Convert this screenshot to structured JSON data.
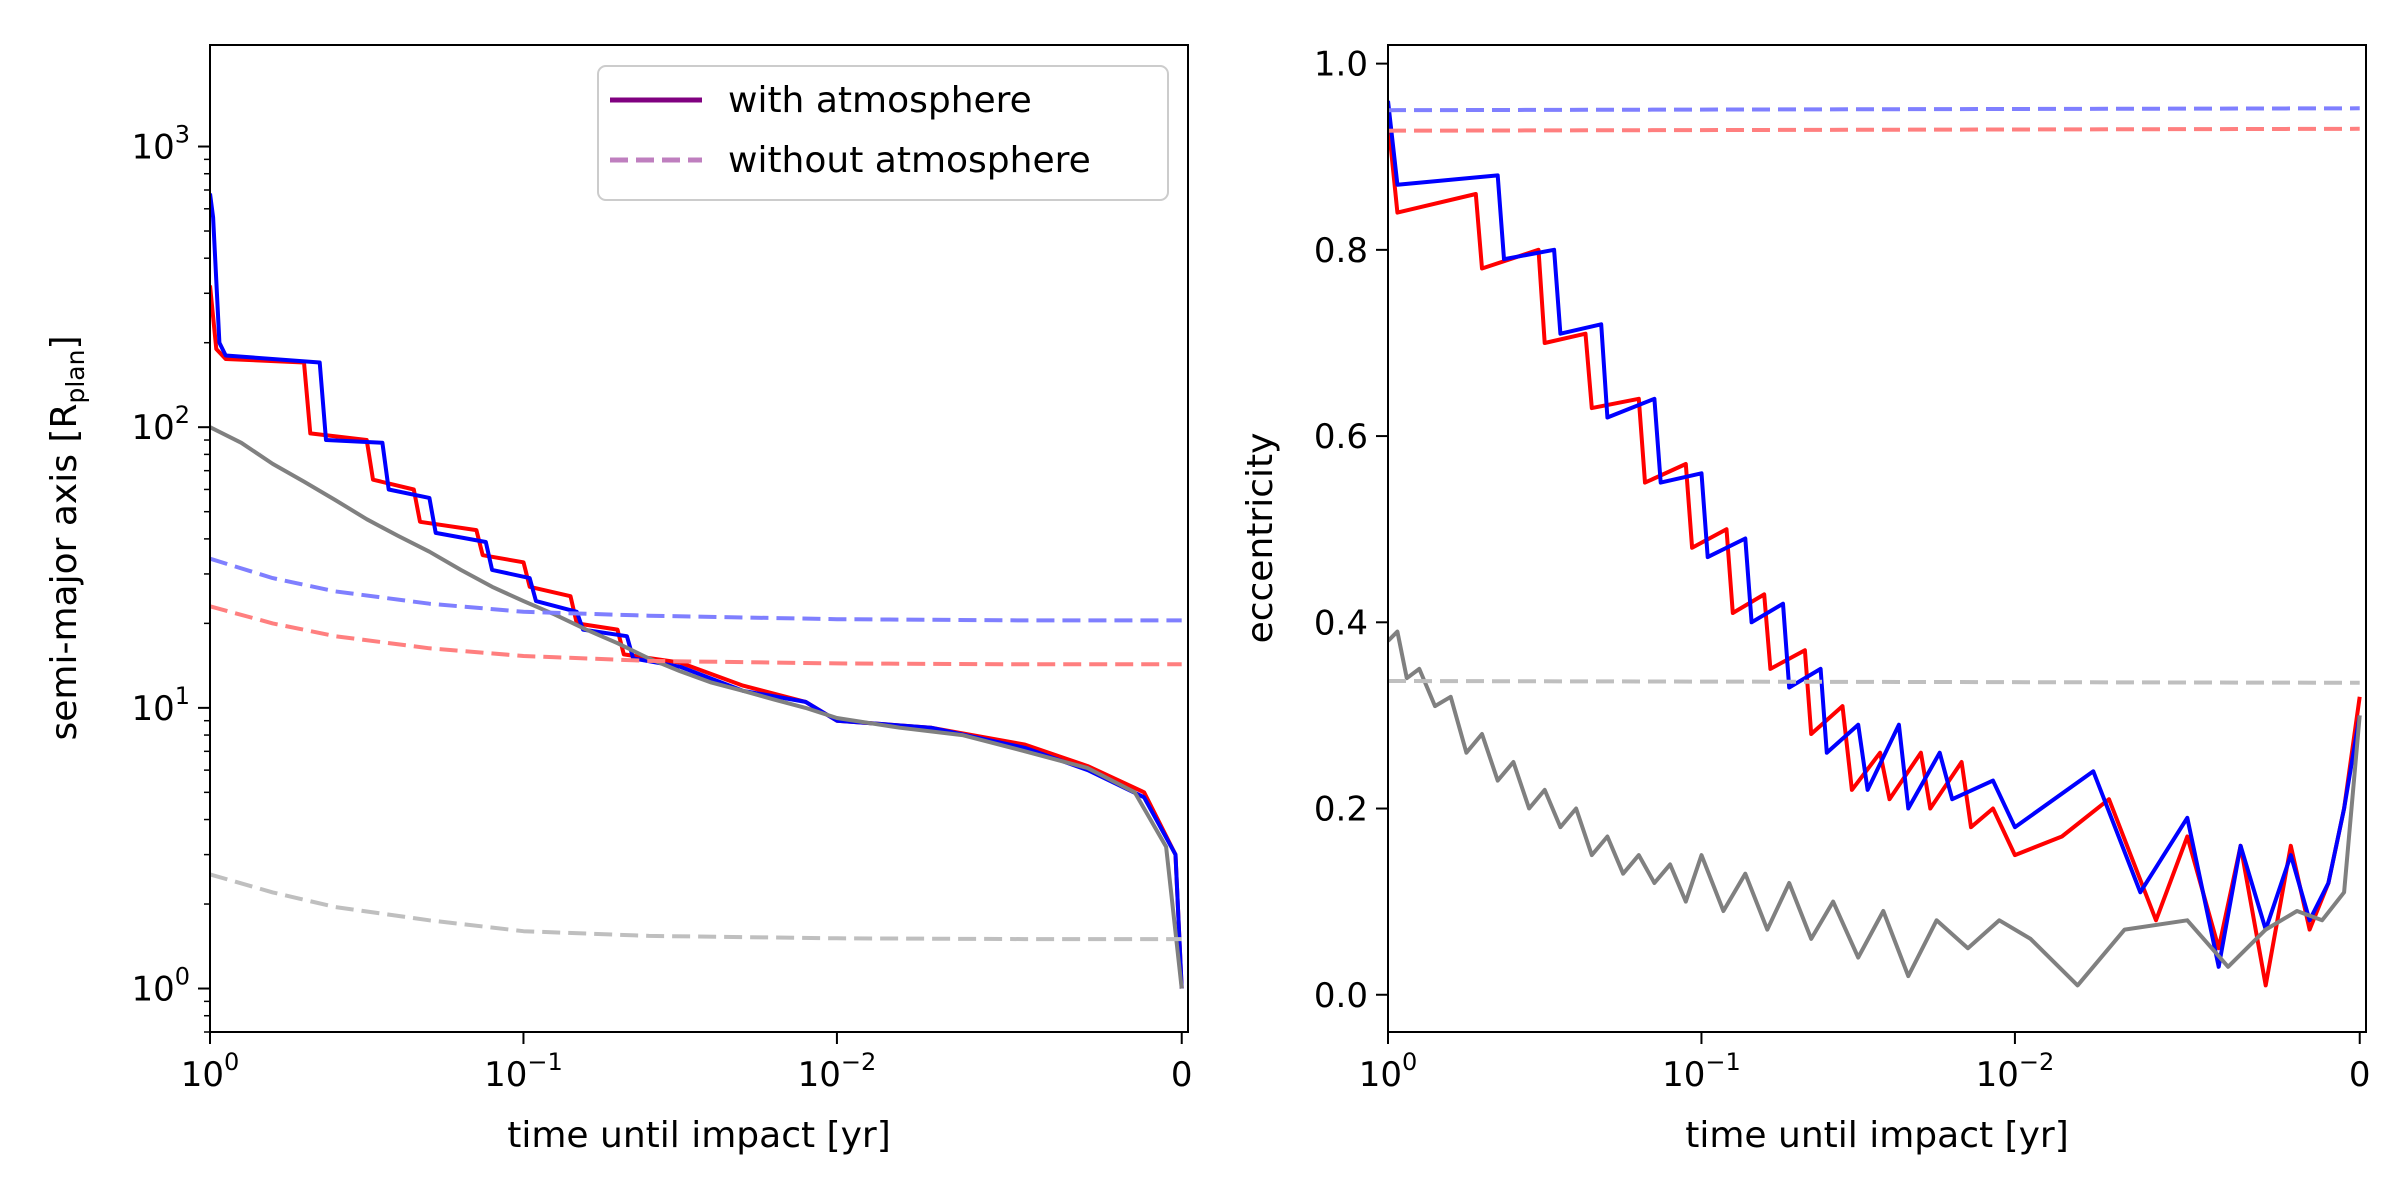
{
  "colors": {
    "purple": "#800080",
    "purple_light": "#bf7fbf",
    "red": "#ff0000",
    "blue": "#0000ff",
    "gray": "#808080",
    "red_dashed": "#ff7f7f",
    "blue_dashed": "#7f7fff",
    "gray_dashed": "#bfbfbf"
  },
  "chart_data": [
    {
      "type": "line",
      "panel": "left",
      "xlabel": "time until impact [yr]",
      "ylabel": "semi-major axis [R",
      "ylabel_sub": "plan",
      "ylabel_close": "]",
      "xscale": "log, reversed",
      "yscale": "log",
      "xlim": [
        1,
        0
      ],
      "ylim": [
        0.7,
        2300
      ],
      "xticks": [
        {
          "pos": 0,
          "base": "10",
          "exp": "0"
        },
        {
          "pos": 1,
          "base": "10",
          "exp": "−1"
        },
        {
          "pos": 2,
          "base": "10",
          "exp": "−2"
        },
        {
          "pos": 3.1,
          "base": "0",
          "exp": ""
        }
      ],
      "yticks": [
        {
          "value": 1,
          "base": "10",
          "exp": "0"
        },
        {
          "value": 10,
          "base": "10",
          "exp": "1"
        },
        {
          "value": 100,
          "base": "10",
          "exp": "2"
        },
        {
          "value": 1000,
          "base": "10",
          "exp": "3"
        }
      ],
      "legend": {
        "location": "top-right",
        "entries": [
          {
            "label": "with atmosphere",
            "color": "#800080",
            "style": "solid"
          },
          {
            "label": "without atmosphere",
            "color": "#bf7fbf",
            "style": "dashed"
          }
        ]
      },
      "series": [
        {
          "name": "red with atmosphere",
          "color": "#ff0000",
          "style": "solid",
          "x_decades": [
            0,
            0.02,
            0.05,
            0.3,
            0.32,
            0.5,
            0.52,
            0.65,
            0.67,
            0.85,
            0.87,
            1.0,
            1.02,
            1.15,
            1.17,
            1.3,
            1.32,
            1.5,
            1.7,
            1.9,
            2.0,
            2.3,
            2.6,
            2.8,
            2.98,
            3.08,
            3.1
          ],
          "values": [
            320,
            190,
            175,
            170,
            95,
            90,
            65,
            60,
            46,
            43,
            35,
            33,
            27,
            25,
            20,
            19,
            15.5,
            14.5,
            12,
            10.5,
            9,
            8.5,
            7.4,
            6.2,
            5,
            3,
            1
          ]
        },
        {
          "name": "blue with atmosphere",
          "color": "#0000ff",
          "style": "solid",
          "x_decades": [
            0,
            0.01,
            0.03,
            0.05,
            0.35,
            0.37,
            0.55,
            0.57,
            0.7,
            0.72,
            0.88,
            0.9,
            1.02,
            1.04,
            1.17,
            1.19,
            1.33,
            1.35,
            1.5,
            1.7,
            1.9,
            2.0,
            2.3,
            2.6,
            2.8,
            2.98,
            3.08,
            3.1
          ],
          "values": [
            680,
            560,
            200,
            180,
            170,
            90,
            88,
            60,
            56,
            42,
            39,
            31,
            29,
            24,
            22,
            19,
            18,
            15,
            14,
            11.5,
            10.5,
            9,
            8.5,
            7.2,
            6,
            4.8,
            3,
            1
          ]
        },
        {
          "name": "gray with atmosphere",
          "color": "#808080",
          "style": "solid",
          "x_decades": [
            0,
            0.1,
            0.2,
            0.3,
            0.4,
            0.5,
            0.6,
            0.7,
            0.8,
            0.9,
            1.0,
            1.1,
            1.2,
            1.3,
            1.4,
            1.5,
            1.6,
            1.7,
            1.8,
            1.9,
            2.0,
            2.2,
            2.4,
            2.6,
            2.8,
            2.95,
            3.05,
            3.1
          ],
          "values": [
            100,
            88,
            74,
            64,
            55,
            47,
            41,
            36,
            31,
            27,
            24,
            21.5,
            19,
            17,
            15,
            13.5,
            12.3,
            11.5,
            10.7,
            10,
            9.2,
            8.5,
            8,
            7,
            6.1,
            5,
            3.2,
            1
          ]
        },
        {
          "name": "red without atmosphere",
          "color": "#ff7f7f",
          "style": "dashed",
          "x_decades": [
            0,
            0.2,
            0.4,
            0.7,
            1.0,
            1.4,
            2.0,
            2.6,
            3.1
          ],
          "values": [
            23,
            20,
            18,
            16.3,
            15.3,
            14.7,
            14.4,
            14.3,
            14.3
          ]
        },
        {
          "name": "blue without atmosphere",
          "color": "#7f7fff",
          "style": "dashed",
          "x_decades": [
            0,
            0.2,
            0.4,
            0.7,
            1.0,
            1.4,
            2.0,
            2.6,
            3.1
          ],
          "values": [
            34,
            29,
            26,
            23.5,
            22,
            21.3,
            20.7,
            20.5,
            20.5
          ]
        },
        {
          "name": "gray without atmosphere",
          "color": "#bfbfbf",
          "style": "dashed",
          "x_decades": [
            0,
            0.2,
            0.4,
            0.7,
            1.0,
            1.4,
            2.0,
            2.6,
            3.1
          ],
          "values": [
            2.55,
            2.2,
            1.95,
            1.75,
            1.6,
            1.54,
            1.51,
            1.5,
            1.5
          ]
        }
      ]
    },
    {
      "type": "line",
      "panel": "right",
      "xlabel": "time until impact [yr]",
      "ylabel": "eccentricity",
      "xscale": "log, reversed",
      "yscale": "linear",
      "xlim": [
        1,
        0
      ],
      "ylim": [
        -0.04,
        1.02
      ],
      "xticks": [
        {
          "pos": 0,
          "base": "10",
          "exp": "0"
        },
        {
          "pos": 1,
          "base": "10",
          "exp": "−1"
        },
        {
          "pos": 2,
          "base": "10",
          "exp": "−2"
        },
        {
          "pos": 3.1,
          "base": "0",
          "exp": ""
        }
      ],
      "yticks": [
        {
          "value": 0.0,
          "label": "0.0"
        },
        {
          "value": 0.2,
          "label": "0.2"
        },
        {
          "value": 0.4,
          "label": "0.4"
        },
        {
          "value": 0.6,
          "label": "0.6"
        },
        {
          "value": 0.8,
          "label": "0.8"
        },
        {
          "value": 1.0,
          "label": "1.0"
        }
      ],
      "series": [
        {
          "name": "red with atmosphere",
          "color": "#ff0000",
          "style": "solid",
          "x_decades": [
            0,
            0.03,
            0.28,
            0.3,
            0.48,
            0.5,
            0.63,
            0.65,
            0.8,
            0.82,
            0.95,
            0.97,
            1.08,
            1.1,
            1.2,
            1.22,
            1.33,
            1.35,
            1.45,
            1.48,
            1.57,
            1.6,
            1.7,
            1.73,
            1.83,
            1.86,
            1.93,
            2.0,
            2.15,
            2.3,
            2.45,
            2.55,
            2.65,
            2.72,
            2.8,
            2.88,
            2.94,
            3.0,
            3.05,
            3.1
          ],
          "values": [
            0.94,
            0.84,
            0.86,
            0.78,
            0.8,
            0.7,
            0.71,
            0.63,
            0.64,
            0.55,
            0.57,
            0.48,
            0.5,
            0.41,
            0.43,
            0.35,
            0.37,
            0.28,
            0.31,
            0.22,
            0.26,
            0.21,
            0.26,
            0.2,
            0.25,
            0.18,
            0.2,
            0.15,
            0.17,
            0.21,
            0.08,
            0.17,
            0.05,
            0.16,
            0.01,
            0.16,
            0.07,
            0.12,
            0.2,
            0.32
          ]
        },
        {
          "name": "blue with atmosphere",
          "color": "#0000ff",
          "style": "solid",
          "x_decades": [
            0,
            0.03,
            0.35,
            0.37,
            0.53,
            0.55,
            0.68,
            0.7,
            0.85,
            0.87,
            1.0,
            1.02,
            1.14,
            1.16,
            1.26,
            1.28,
            1.38,
            1.4,
            1.5,
            1.53,
            1.63,
            1.66,
            1.76,
            1.8,
            1.93,
            2.0,
            2.25,
            2.4,
            2.55,
            2.65,
            2.72,
            2.8,
            2.88,
            2.94,
            3.0,
            3.05,
            3.1
          ],
          "values": [
            0.96,
            0.87,
            0.88,
            0.79,
            0.8,
            0.71,
            0.72,
            0.62,
            0.64,
            0.55,
            0.56,
            0.47,
            0.49,
            0.4,
            0.42,
            0.33,
            0.35,
            0.26,
            0.29,
            0.22,
            0.29,
            0.2,
            0.26,
            0.21,
            0.23,
            0.18,
            0.24,
            0.11,
            0.19,
            0.03,
            0.16,
            0.07,
            0.15,
            0.08,
            0.12,
            0.2,
            0.3
          ]
        },
        {
          "name": "gray with atmosphere",
          "color": "#808080",
          "style": "solid",
          "x_decades": [
            0,
            0.03,
            0.06,
            0.1,
            0.15,
            0.2,
            0.25,
            0.3,
            0.35,
            0.4,
            0.45,
            0.5,
            0.55,
            0.6,
            0.65,
            0.7,
            0.75,
            0.8,
            0.85,
            0.9,
            0.95,
            1.0,
            1.07,
            1.14,
            1.21,
            1.28,
            1.35,
            1.42,
            1.5,
            1.58,
            1.66,
            1.75,
            1.85,
            1.95,
            2.05,
            2.2,
            2.35,
            2.55,
            2.68,
            2.8,
            2.9,
            2.98,
            3.05,
            3.1
          ],
          "values": [
            0.38,
            0.39,
            0.34,
            0.35,
            0.31,
            0.32,
            0.26,
            0.28,
            0.23,
            0.25,
            0.2,
            0.22,
            0.18,
            0.2,
            0.15,
            0.17,
            0.13,
            0.15,
            0.12,
            0.14,
            0.1,
            0.15,
            0.09,
            0.13,
            0.07,
            0.12,
            0.06,
            0.1,
            0.04,
            0.09,
            0.02,
            0.08,
            0.05,
            0.08,
            0.06,
            0.01,
            0.07,
            0.08,
            0.03,
            0.07,
            0.09,
            0.08,
            0.11,
            0.3
          ]
        },
        {
          "name": "red without atmosphere",
          "color": "#ff7f7f",
          "style": "dashed",
          "x_decades": [
            0,
            3.1
          ],
          "values": [
            0.928,
            0.93
          ]
        },
        {
          "name": "blue without atmosphere",
          "color": "#7f7fff",
          "style": "dashed",
          "x_decades": [
            0,
            3.1
          ],
          "values": [
            0.95,
            0.952
          ]
        },
        {
          "name": "gray without atmosphere",
          "color": "#bfbfbf",
          "style": "dashed",
          "x_decades": [
            0,
            3.1
          ],
          "values": [
            0.337,
            0.335
          ]
        }
      ]
    }
  ]
}
